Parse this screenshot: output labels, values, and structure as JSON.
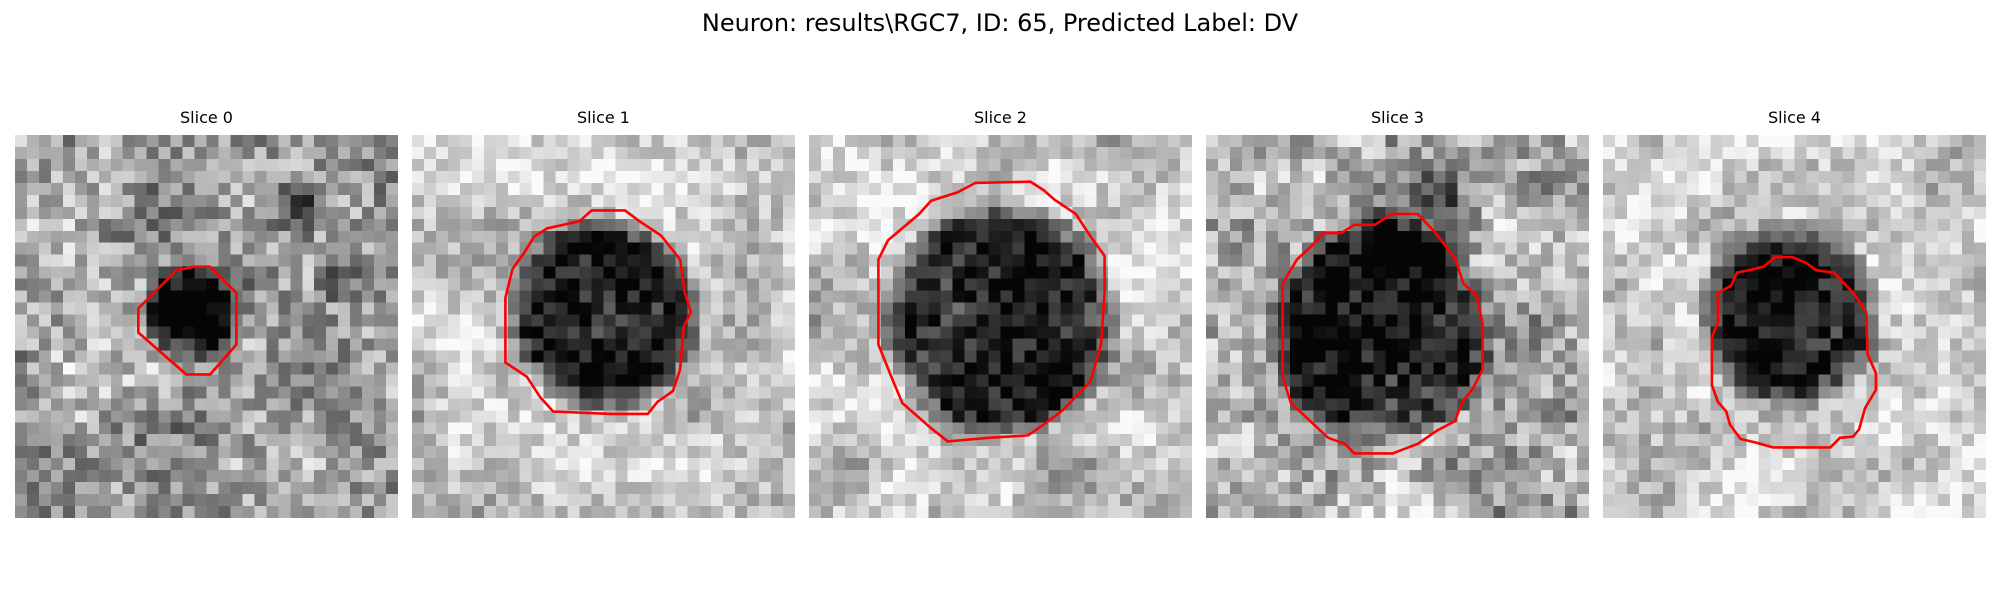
{
  "figure": {
    "title": "Neuron: results\\RGC7, ID: 65, Predicted Label: DV"
  },
  "panels": [
    {
      "title": "Slice 0"
    },
    {
      "title": "Slice 1"
    },
    {
      "title": "Slice 2"
    },
    {
      "title": "Slice 3"
    },
    {
      "title": "Slice 4"
    }
  ],
  "colors": {
    "contour": "#ff0000",
    "background": "#ffffff",
    "colormap": "grayscale"
  }
}
